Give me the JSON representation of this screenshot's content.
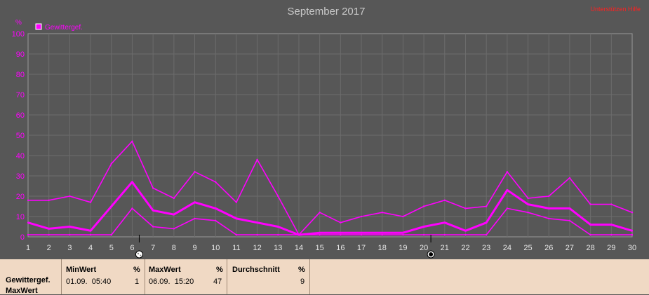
{
  "chart_data": {
    "type": "line",
    "title": "September 2017",
    "top_right_label": "Unterstützen Hilfe",
    "ylabel": "%",
    "ylim": [
      0,
      100
    ],
    "yticks": [
      0,
      10,
      20,
      30,
      40,
      50,
      60,
      70,
      80,
      90,
      100
    ],
    "x": [
      1,
      2,
      3,
      4,
      5,
      6,
      7,
      8,
      9,
      10,
      11,
      12,
      13,
      14,
      15,
      16,
      17,
      18,
      19,
      20,
      21,
      22,
      23,
      24,
      25,
      26,
      27,
      28,
      29,
      30
    ],
    "xlim": [
      1,
      30
    ],
    "grid": true,
    "legend": {
      "position": "top-left",
      "entries": [
        "Gewittergef."
      ]
    },
    "moon_markers": [
      {
        "x": 6,
        "icon": "full-moon-icon"
      },
      {
        "x": 20,
        "icon": "new-moon-icon"
      }
    ],
    "series": [
      {
        "name": "Gewittergef.",
        "role": "max",
        "color": "#ff00ff",
        "values": [
          18,
          18,
          20,
          17,
          36,
          47,
          24,
          19,
          32,
          27,
          17,
          38,
          20,
          1,
          12,
          7,
          10,
          12,
          10,
          15,
          18,
          14,
          15,
          32,
          19,
          20,
          29,
          16,
          16,
          12
        ]
      },
      {
        "name": "Gewittergef.",
        "role": "mean",
        "color": "#ff00ff",
        "values": [
          7,
          4,
          5,
          3,
          15,
          27,
          13,
          11,
          17,
          14,
          9,
          7,
          5,
          1,
          2,
          2,
          2,
          2,
          2,
          5,
          7,
          3,
          7,
          23,
          16,
          14,
          14,
          6,
          6,
          3
        ]
      },
      {
        "name": "Gewittergef.",
        "role": "min",
        "color": "#ff00ff",
        "values": [
          1,
          1,
          1,
          1,
          1,
          14,
          5,
          4,
          9,
          8,
          1,
          1,
          1,
          1,
          1,
          1,
          1,
          1,
          1,
          1,
          1,
          1,
          1,
          14,
          12,
          9,
          8,
          1,
          1,
          1
        ]
      }
    ]
  },
  "panel": {
    "row_label_1": "Gewittergef.",
    "row_label_2": "MaxWert",
    "min": {
      "header": "MinWert",
      "unit": "%",
      "date": "01.09.  05:40",
      "value": "1"
    },
    "max": {
      "header": "MaxWert",
      "unit": "%",
      "date": "06.09.  15:20",
      "value": "47"
    },
    "avg": {
      "header": "Durchschnitt",
      "unit": "%",
      "value": "9"
    }
  },
  "colors": {
    "background": "#575757",
    "plot_border": "#9a9a9a",
    "grid": "#6c6c6c",
    "series": "#ff00ff",
    "title": "#c8c8c8",
    "xtick": "#e8e8e8",
    "top_right_label": "#ff2020",
    "panel": "#f0d9c4"
  }
}
